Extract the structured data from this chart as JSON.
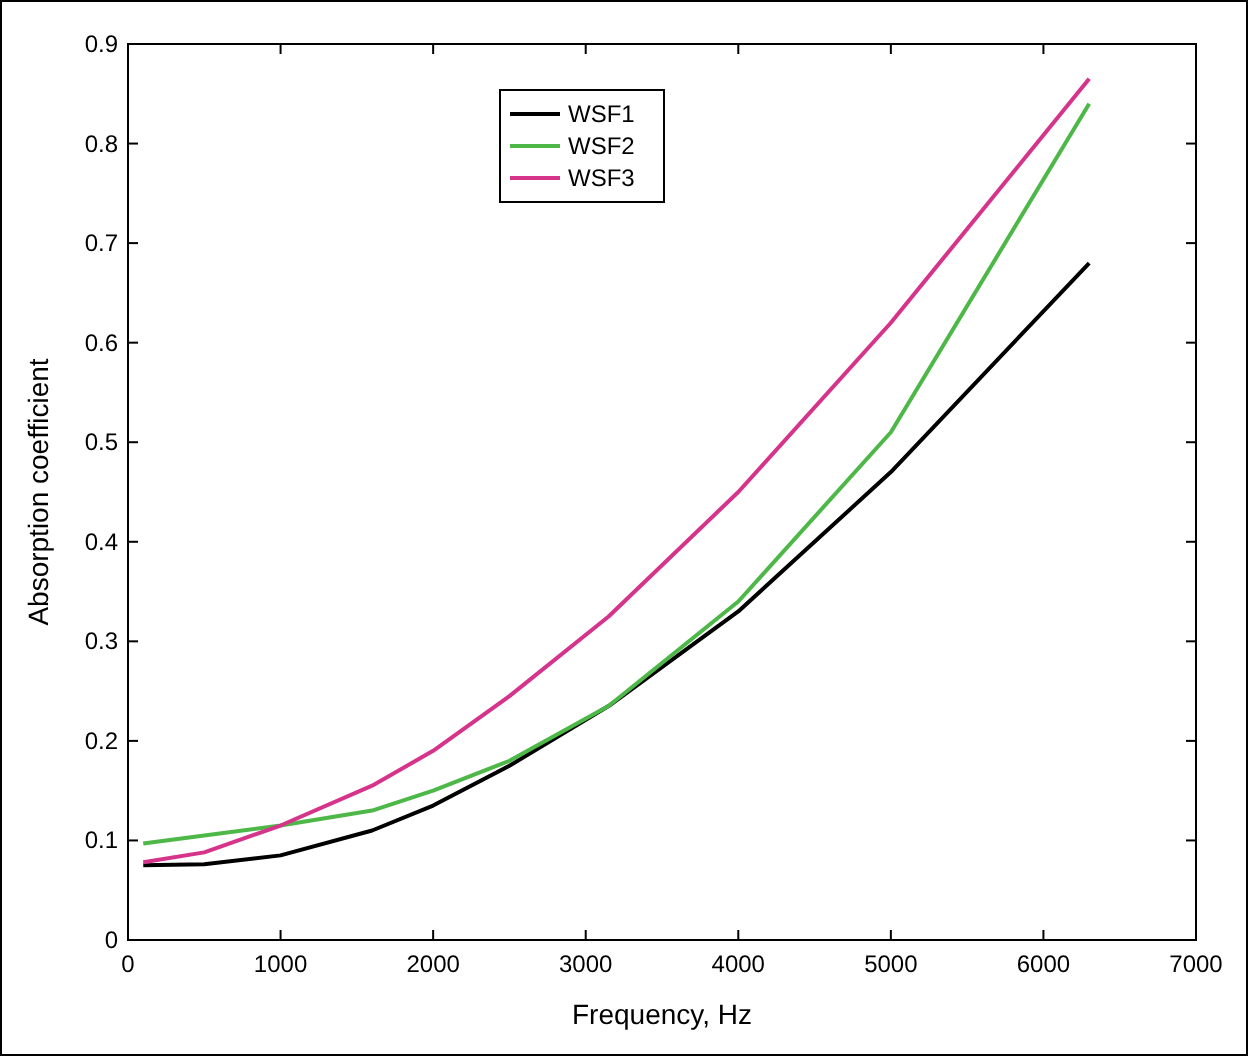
{
  "chart_data": {
    "type": "line",
    "xlabel": "Frequency, Hz",
    "ylabel": "Absorption coefficient",
    "x": [
      100,
      500,
      1000,
      1600,
      2000,
      2500,
      3150,
      4000,
      5000,
      6300
    ],
    "series": [
      {
        "name": "WSF1",
        "color": "#000000",
        "values": [
          0.075,
          0.076,
          0.085,
          0.11,
          0.135,
          0.175,
          0.235,
          0.33,
          0.47,
          0.68
        ]
      },
      {
        "name": "WSF2",
        "color": "#4db848",
        "values": [
          0.097,
          0.105,
          0.115,
          0.13,
          0.15,
          0.18,
          0.235,
          0.34,
          0.51,
          0.84
        ]
      },
      {
        "name": "WSF3",
        "color": "#d6338a",
        "values": [
          0.078,
          0.088,
          0.115,
          0.155,
          0.19,
          0.245,
          0.325,
          0.45,
          0.62,
          0.865
        ]
      }
    ],
    "xlim": [
      0,
      7000
    ],
    "xticks": [
      0,
      1000,
      2000,
      3000,
      4000,
      5000,
      6000,
      7000
    ],
    "ylim": [
      0,
      0.9
    ],
    "yticks": [
      0,
      0.1,
      0.2,
      0.3,
      0.4,
      0.5,
      0.6,
      0.7,
      0.8,
      0.9
    ],
    "legend": "top",
    "grid": false,
    "marker": "none",
    "line_style": "solid"
  }
}
